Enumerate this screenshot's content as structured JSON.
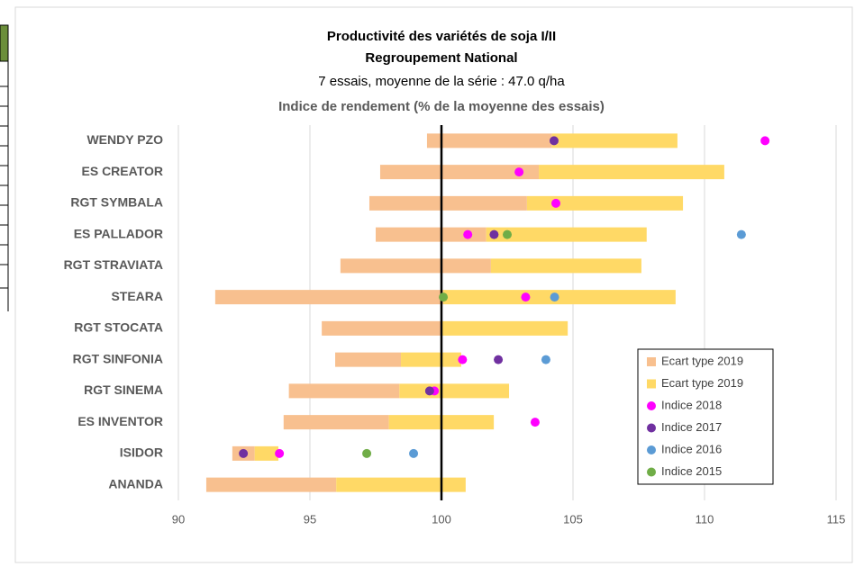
{
  "chart_data": {
    "type": "range_bar_dot",
    "title": "Productivité des variétés de soja I/II",
    "subtitle": "Regroupement National",
    "subtitle2": "7 essais, moyenne de la série : 47.0 q/ha",
    "axis_title": "Indice de rendement (% de la moyenne des essais)",
    "categories": [
      "WENDY PZO",
      "ES CREATOR",
      "RGT SYMBALA",
      "ES PALLADOR",
      "RGT STRAVIATA",
      "STEARA",
      "RGT STOCATA",
      "RGT SINFONIA",
      "RGT SINEMA",
      "ES INVENTOR",
      "ISIDOR",
      "ANANDA"
    ],
    "xlim": [
      90,
      115
    ],
    "xticks": [
      90,
      95,
      100,
      105,
      110,
      115
    ],
    "grid": true,
    "reference_line": 100,
    "series": [
      {
        "name": "Ecart type 2019",
        "kind": "range",
        "color": "#f8c08f",
        "values": [
          [
            99.45,
            104.2
          ],
          [
            97.67,
            103.7
          ],
          [
            97.26,
            103.25
          ],
          [
            97.5,
            101.7
          ],
          [
            96.16,
            101.88
          ],
          [
            91.4,
            100.07
          ],
          [
            95.45,
            100.0
          ],
          [
            95.96,
            98.46
          ],
          [
            94.2,
            98.4
          ],
          [
            94.0,
            98.0
          ],
          [
            92.05,
            92.9
          ],
          [
            91.06,
            96.0
          ]
        ]
      },
      {
        "name": "Ecart type 2019",
        "kind": "range",
        "color": "#ffd966",
        "values": [
          [
            104.2,
            108.97
          ],
          [
            103.7,
            110.75
          ],
          [
            103.25,
            109.18
          ],
          [
            101.7,
            107.8
          ],
          [
            101.88,
            107.6
          ],
          [
            100.07,
            108.9
          ],
          [
            100.0,
            104.8
          ],
          [
            98.46,
            100.75
          ],
          [
            98.4,
            102.57
          ],
          [
            98.0,
            101.99
          ],
          [
            92.9,
            93.8
          ],
          [
            96.0,
            100.92
          ]
        ]
      },
      {
        "name": "Indice 2018",
        "kind": "dot",
        "color": "#ff00ff",
        "values": [
          112.3,
          102.95,
          104.35,
          101.0,
          null,
          103.2,
          null,
          100.8,
          99.73,
          103.56,
          93.84,
          null
        ]
      },
      {
        "name": "Indice 2017",
        "kind": "dot",
        "color": "#7030a0",
        "values": [
          104.28,
          null,
          null,
          102.0,
          null,
          null,
          null,
          102.16,
          99.55,
          null,
          92.47,
          null
        ]
      },
      {
        "name": "Indice 2016",
        "kind": "dot",
        "color": "#5b9bd5",
        "values": [
          null,
          null,
          null,
          111.4,
          null,
          104.3,
          null,
          103.97,
          null,
          null,
          98.94,
          null
        ]
      },
      {
        "name": "Indice 2015",
        "kind": "dot",
        "color": "#70ad47",
        "values": [
          null,
          null,
          null,
          102.5,
          null,
          100.07,
          null,
          null,
          null,
          null,
          97.16,
          null
        ]
      }
    ]
  }
}
